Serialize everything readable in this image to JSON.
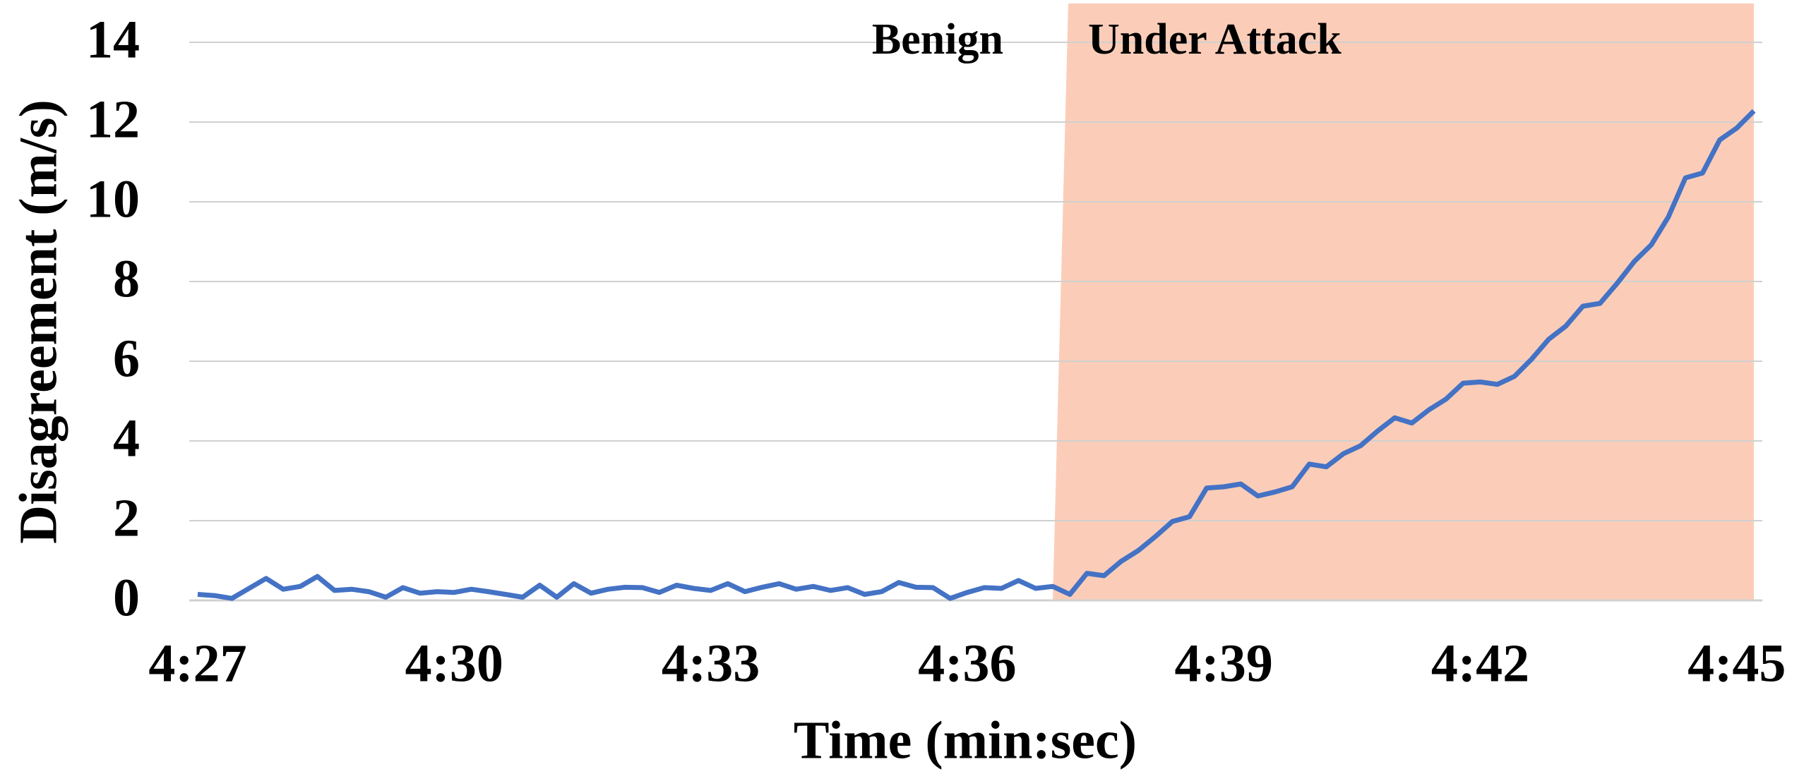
{
  "chart_data": {
    "type": "line",
    "x_label": "Time (min:sec)",
    "y_label": "Disagreement (m/s)",
    "annotations": [
      "Benign",
      "Under Attack"
    ],
    "attack_region": {
      "x_start": 277,
      "x_end": 285.2,
      "color": "#fbcdb8"
    },
    "x": [
      267,
      267.2,
      267.4,
      267.6,
      267.8,
      268,
      268.2,
      268.4,
      268.6,
      268.8,
      269,
      269.2,
      269.4,
      269.6,
      269.8,
      270,
      270.2,
      270.4,
      270.6,
      270.8,
      271,
      271.2,
      271.4,
      271.6,
      271.8,
      272,
      272.2,
      272.4,
      272.6,
      272.8,
      273,
      273.2,
      273.4,
      273.6,
      273.8,
      274,
      274.2,
      274.4,
      274.6,
      274.8,
      275,
      275.2,
      275.4,
      275.6,
      275.8,
      276,
      276.2,
      276.4,
      276.6,
      276.8,
      277,
      277.2,
      277.4,
      277.6,
      277.8,
      278,
      278.2,
      278.4,
      278.6,
      278.8,
      279,
      279.2,
      279.4,
      279.6,
      279.8,
      280,
      280.2,
      280.4,
      280.6,
      280.8,
      281,
      281.2,
      281.4,
      281.6,
      281.8,
      282,
      282.2,
      282.4,
      282.6,
      282.8,
      283,
      283.2,
      283.4,
      283.6,
      283.8,
      284,
      284.2,
      284.4,
      284.6,
      284.8,
      285,
      285.2
    ],
    "series": [
      {
        "name": "Disagreement",
        "color": "#4472c4",
        "values": [
          0.15,
          0.12,
          0.05,
          0.3,
          0.55,
          0.28,
          0.35,
          0.6,
          0.25,
          0.28,
          0.22,
          0.08,
          0.32,
          0.18,
          0.22,
          0.2,
          0.28,
          0.22,
          0.15,
          0.08,
          0.38,
          0.08,
          0.42,
          0.18,
          0.28,
          0.33,
          0.32,
          0.2,
          0.38,
          0.3,
          0.25,
          0.42,
          0.22,
          0.33,
          0.42,
          0.28,
          0.35,
          0.25,
          0.32,
          0.15,
          0.22,
          0.45,
          0.33,
          0.32,
          0.05,
          0.2,
          0.32,
          0.3,
          0.5,
          0.3,
          0.35,
          0.15,
          0.68,
          0.62,
          0.98,
          1.25,
          1.6,
          1.98,
          2.1,
          2.82,
          2.85,
          2.92,
          2.62,
          2.72,
          2.85,
          3.42,
          3.35,
          3.68,
          3.88,
          4.25,
          4.58,
          4.45,
          4.78,
          5.05,
          5.45,
          5.48,
          5.42,
          5.62,
          6.05,
          6.55,
          6.88,
          7.38,
          7.45,
          7.95,
          8.5,
          8.92,
          9.62,
          10.6,
          10.72,
          11.55,
          11.85,
          12.28
        ]
      }
    ],
    "xlim": [
      267,
      285.2
    ],
    "xticks": [
      {
        "value": 267,
        "label": "4:27"
      },
      {
        "value": 270,
        "label": "4:30"
      },
      {
        "value": 273,
        "label": "4:33"
      },
      {
        "value": 276,
        "label": "4:36"
      },
      {
        "value": 279,
        "label": "4:39"
      },
      {
        "value": 282,
        "label": "4:42"
      },
      {
        "value": 285,
        "label": "4:45"
      }
    ],
    "ylim": [
      0,
      14
    ],
    "yticks": [
      0,
      2,
      4,
      6,
      8,
      10,
      12,
      14
    ],
    "grid": true
  }
}
